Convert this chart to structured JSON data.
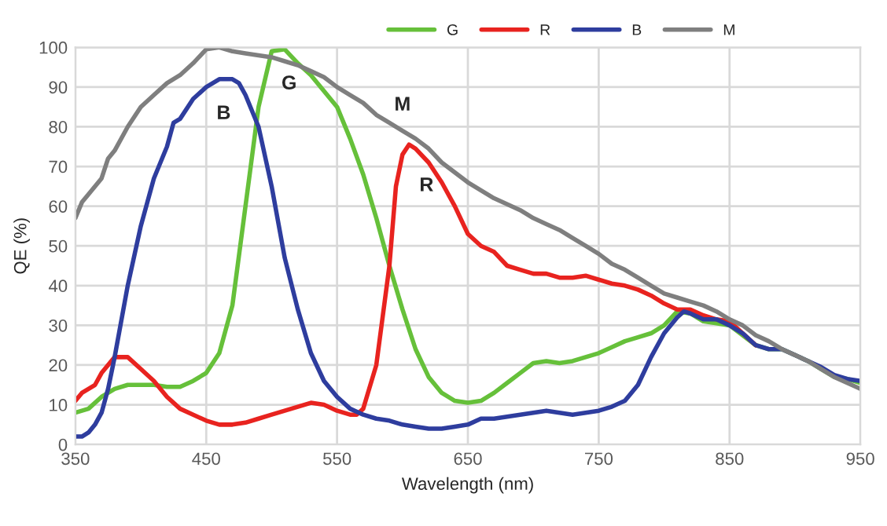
{
  "chart_data": {
    "type": "line",
    "xlabel": "Wavelength (nm)",
    "ylabel": "QE (%)",
    "xlim": [
      350,
      950
    ],
    "xticks": [
      350,
      450,
      550,
      650,
      750,
      850,
      950
    ],
    "ylim": [
      0,
      100
    ],
    "yticks": [
      0,
      10,
      20,
      30,
      40,
      50,
      60,
      70,
      80,
      90,
      100
    ],
    "grid": true,
    "legend": "top",
    "marker": "none",
    "line_style": "solid",
    "series": [
      {
        "name": "G",
        "color": "#66c03a",
        "x": [
          350,
          360,
          370,
          380,
          390,
          400,
          410,
          420,
          430,
          440,
          450,
          460,
          470,
          480,
          490,
          500,
          510,
          520,
          530,
          540,
          550,
          560,
          570,
          580,
          590,
          600,
          610,
          620,
          630,
          640,
          650,
          660,
          670,
          680,
          690,
          700,
          710,
          720,
          730,
          740,
          750,
          760,
          770,
          780,
          790,
          800,
          810,
          820,
          830,
          840,
          850,
          860,
          870,
          880,
          890,
          900,
          910,
          920,
          930,
          940,
          950
        ],
        "values": [
          8,
          9,
          12,
          14,
          15,
          15,
          15,
          14.5,
          14.5,
          16,
          18,
          23,
          35,
          60,
          85,
          99,
          99.5,
          96,
          93,
          89,
          85,
          77,
          68,
          57,
          45,
          34,
          24,
          17,
          13,
          11,
          10.5,
          11,
          13,
          15.5,
          18,
          20.5,
          21,
          20.5,
          21,
          22,
          23,
          24.5,
          26,
          27,
          28,
          30,
          33.5,
          33,
          31,
          30.5,
          30,
          27.5,
          25,
          24,
          24,
          22.5,
          21,
          19,
          17,
          16.5,
          15.5
        ]
      },
      {
        "name": "R",
        "color": "#e8231f",
        "x": [
          350,
          355,
          360,
          365,
          370,
          380,
          390,
          400,
          410,
          420,
          430,
          440,
          450,
          460,
          470,
          480,
          490,
          500,
          510,
          520,
          530,
          540,
          550,
          560,
          565,
          570,
          580,
          590,
          595,
          600,
          605,
          610,
          620,
          630,
          640,
          650,
          660,
          670,
          680,
          690,
          700,
          710,
          720,
          730,
          740,
          750,
          760,
          770,
          780,
          790,
          800,
          810,
          820,
          830,
          840,
          850,
          860,
          870
        ],
        "values": [
          11,
          13,
          14,
          15,
          18,
          22,
          22,
          19,
          16,
          12,
          9,
          7.5,
          6,
          5,
          5,
          5.5,
          6.5,
          7.5,
          8.5,
          9.5,
          10.5,
          10,
          8.5,
          7.5,
          7.5,
          9,
          20,
          45,
          65,
          73,
          75.5,
          74.5,
          71,
          66,
          60,
          53,
          50,
          48.5,
          45,
          44,
          43,
          43,
          42,
          42,
          42.5,
          41.5,
          40.5,
          40,
          39,
          37.5,
          35.5,
          34,
          34,
          32.5,
          31.5,
          31,
          28,
          25
        ]
      },
      {
        "name": "B",
        "color": "#2e3d9e",
        "x": [
          350,
          355,
          360,
          365,
          370,
          375,
          380,
          390,
          400,
          410,
          420,
          425,
          430,
          440,
          450,
          460,
          470,
          475,
          480,
          490,
          500,
          510,
          520,
          530,
          540,
          550,
          560,
          570,
          580,
          590,
          600,
          610,
          620,
          630,
          640,
          650,
          660,
          670,
          680,
          690,
          700,
          710,
          720,
          730,
          740,
          750,
          760,
          770,
          780,
          790,
          800,
          810,
          815,
          820,
          830,
          840,
          850,
          860,
          870,
          880,
          890,
          900,
          910,
          920,
          930,
          940,
          950
        ],
        "values": [
          2,
          2,
          3,
          5,
          8,
          14,
          22,
          40,
          55,
          67,
          75,
          81,
          82,
          87,
          90,
          92,
          92,
          91,
          88,
          80,
          65,
          47,
          34,
          23,
          16,
          12,
          9,
          7.5,
          6.5,
          6,
          5,
          4.5,
          4,
          4,
          4.5,
          5,
          6.5,
          6.5,
          7,
          7.5,
          8,
          8.5,
          8,
          7.5,
          8,
          8.5,
          9.5,
          11,
          15,
          22,
          28,
          32,
          33.5,
          33,
          31.5,
          31.5,
          30,
          28,
          25,
          24,
          24,
          22.5,
          21,
          19.5,
          17.5,
          16.5,
          16
        ]
      },
      {
        "name": "M",
        "color": "#7f7f7f",
        "x": [
          350,
          355,
          360,
          370,
          375,
          380,
          390,
          400,
          410,
          420,
          430,
          440,
          450,
          460,
          470,
          480,
          490,
          500,
          510,
          520,
          530,
          540,
          550,
          560,
          570,
          580,
          590,
          600,
          610,
          620,
          630,
          650,
          670,
          690,
          700,
          710,
          720,
          730,
          740,
          750,
          760,
          770,
          780,
          790,
          800,
          810,
          820,
          830,
          840,
          850,
          860,
          870,
          880,
          890,
          900,
          910,
          920,
          930,
          940,
          950
        ],
        "values": [
          57,
          61,
          63,
          67,
          72,
          74,
          80,
          85,
          88,
          91,
          93,
          96,
          99.5,
          100,
          99,
          98.5,
          98,
          97.5,
          96.5,
          95.5,
          94,
          92.5,
          90,
          88,
          86,
          83,
          81,
          79,
          77,
          74.5,
          71,
          66,
          62,
          59,
          57,
          55.5,
          54,
          52,
          50,
          48,
          45.5,
          44,
          42,
          40,
          38,
          37,
          36,
          35,
          33.5,
          31.5,
          30,
          27.5,
          26,
          24,
          22.5,
          21,
          19,
          17,
          15.5,
          14
        ]
      }
    ]
  }
}
